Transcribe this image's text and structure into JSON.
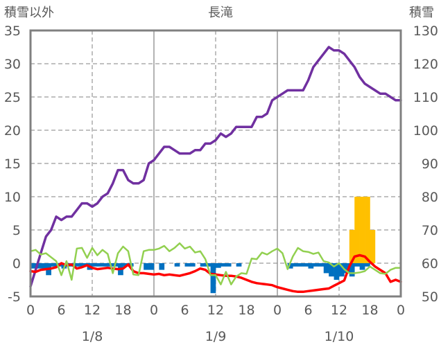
{
  "chart_data": {
    "type": "line",
    "title": "長滝",
    "ylabel_left": "積雪以外",
    "ylabel_right": "積雪",
    "ylim_left": [
      -5,
      35
    ],
    "ylim_right": [
      50,
      130
    ],
    "left_ticks": [
      "35",
      "30",
      "25",
      "20",
      "15",
      "10",
      "5",
      "0",
      "-5"
    ],
    "right_ticks": [
      "130",
      "120",
      "110",
      "100",
      "90",
      "80",
      "70",
      "60",
      "50"
    ],
    "x_ticks": [
      "0",
      "6",
      "12",
      "18",
      "0",
      "6",
      "12",
      "18",
      "0",
      "6",
      "12",
      "18",
      "0"
    ],
    "date_labels": [
      "1/8",
      "1/9",
      "1/10"
    ],
    "colors": {
      "snow_depth": "#7030a0",
      "snowfall": "#ffc000",
      "temperature": "#ff0000",
      "wind": "#92d050",
      "precip": "#0070c0",
      "frame": "#808080"
    },
    "series": [
      {
        "key": "snow_depth",
        "axis": "right",
        "x": [
          0,
          1,
          2,
          3,
          4,
          5,
          6,
          7,
          8,
          9,
          10,
          11,
          12,
          13,
          14,
          15,
          16,
          17,
          18,
          19,
          20,
          21,
          22,
          23,
          24,
          25,
          26,
          27,
          28,
          29,
          30,
          31,
          32,
          33,
          34,
          35,
          36,
          37,
          38,
          39,
          40,
          41,
          42,
          43,
          44,
          45,
          46,
          47,
          48,
          49,
          50,
          51,
          52,
          53,
          54,
          55,
          56,
          57,
          58,
          59,
          60,
          61,
          62,
          63,
          64,
          65,
          66,
          67,
          68,
          69,
          70,
          71,
          72
        ],
        "values": [
          53,
          58,
          63,
          68,
          70,
          74,
          73,
          74,
          74,
          76,
          78,
          78,
          77,
          78,
          80,
          81,
          84,
          88,
          88,
          85,
          84,
          84,
          85,
          90,
          91,
          93,
          95,
          95,
          94,
          93,
          93,
          93,
          94,
          94,
          96,
          96,
          97,
          99,
          98,
          99,
          101,
          101,
          101,
          101,
          104,
          104,
          105,
          109,
          110,
          111,
          112,
          112,
          112,
          112,
          115,
          119,
          121,
          123,
          125,
          124,
          124,
          123,
          121,
          119,
          116,
          114,
          113,
          112,
          111,
          111,
          110,
          109,
          109
        ]
      },
      {
        "key": "temperature",
        "axis": "left",
        "x": [
          0,
          1,
          2,
          3,
          4,
          5,
          6,
          7,
          8,
          9,
          10,
          11,
          12,
          13,
          14,
          15,
          16,
          17,
          18,
          19,
          20,
          21,
          22,
          23,
          24,
          25,
          26,
          27,
          28,
          29,
          30,
          31,
          32,
          33,
          34,
          35,
          36,
          37,
          38,
          39,
          40,
          41,
          42,
          43,
          44,
          45,
          46,
          47,
          48,
          49,
          50,
          51,
          52,
          53,
          54,
          55,
          56,
          57,
          58,
          59,
          60,
          61,
          62,
          63,
          64,
          65,
          66,
          67,
          68,
          69,
          70,
          71,
          72
        ],
        "values": [
          -1.2,
          -1.3,
          -1.0,
          -0.9,
          -0.8,
          -0.6,
          0.0,
          -0.3,
          -0.2,
          -0.8,
          -0.6,
          -0.3,
          -0.7,
          -0.9,
          -0.8,
          -0.7,
          -0.8,
          -0.9,
          -0.8,
          -0.2,
          -1.2,
          -1.5,
          -1.5,
          -1.6,
          -1.7,
          -1.6,
          -1.8,
          -1.7,
          -1.8,
          -1.9,
          -1.7,
          -1.5,
          -1.2,
          -0.8,
          -1.0,
          -1.6,
          -1.7,
          -1.8,
          -1.9,
          -1.9,
          -2.0,
          -2.2,
          -2.5,
          -2.8,
          -3.0,
          -3.1,
          -3.2,
          -3.3,
          -3.6,
          -3.8,
          -4.0,
          -4.2,
          -4.3,
          -4.3,
          -4.2,
          -4.1,
          -4.0,
          -3.9,
          -3.8,
          -3.4,
          -3.0,
          -2.6,
          -0.5,
          1.0,
          1.2,
          1.0,
          0.2,
          -0.5,
          -1.0,
          -1.5,
          -2.8,
          -2.5,
          -2.8
        ]
      },
      {
        "key": "wind",
        "axis": "left",
        "x": [
          0,
          1,
          2,
          3,
          4,
          5,
          6,
          7,
          8,
          9,
          10,
          11,
          12,
          13,
          14,
          15,
          16,
          17,
          18,
          19,
          20,
          21,
          22,
          23,
          24,
          25,
          26,
          27,
          28,
          29,
          30,
          31,
          32,
          33,
          34,
          35,
          36,
          37,
          38,
          39,
          40,
          41,
          42,
          43,
          44,
          45,
          46,
          47,
          48,
          49,
          50,
          51,
          52,
          53,
          54,
          55,
          56,
          57,
          58,
          59,
          60,
          61,
          62,
          63,
          64,
          65,
          66,
          67,
          68,
          69,
          70,
          71,
          72
        ],
        "values": [
          1.8,
          2.0,
          1.3,
          1.5,
          0.9,
          0.3,
          -1.8,
          0.3,
          -2.5,
          2.2,
          2.3,
          0.8,
          2.3,
          1.2,
          2.0,
          1.4,
          -1.5,
          1.5,
          2.5,
          1.8,
          -1.7,
          -1.8,
          1.8,
          2.0,
          2.0,
          2.2,
          2.6,
          1.8,
          2.3,
          3.0,
          2.2,
          2.5,
          1.6,
          1.8,
          0.6,
          -1.8,
          -1.8,
          -3.2,
          -1.3,
          -3.2,
          -2.0,
          -1.5,
          -1.6,
          0.7,
          0.6,
          1.6,
          1.3,
          1.8,
          2.2,
          1.5,
          -0.9,
          1.0,
          2.3,
          1.8,
          1.7,
          1.4,
          1.6,
          0.3,
          0.1,
          -0.5,
          0.0,
          -0.9,
          -1.5,
          -1.5,
          -1.4,
          -1.2,
          -0.5,
          -1.0,
          -1.5,
          -1.6,
          -1.0,
          -0.7,
          -0.7
        ]
      }
    ],
    "bars": [
      {
        "key": "precip",
        "axis": "left",
        "x": [
          0,
          1,
          2,
          3,
          4,
          5,
          6,
          7,
          8,
          9,
          10,
          11,
          12,
          13,
          14,
          15,
          16,
          17,
          18,
          19,
          20,
          21,
          22,
          23,
          24,
          25,
          26,
          27,
          28,
          29,
          30,
          31,
          32,
          33,
          34,
          35,
          36,
          37,
          38,
          39,
          40,
          41,
          42,
          43,
          44,
          45,
          46,
          47,
          48,
          49,
          50,
          51,
          52,
          53,
          54,
          55,
          56,
          57,
          58,
          59,
          60,
          61,
          62,
          63,
          64,
          65,
          66,
          67,
          68,
          69,
          70,
          71
        ],
        "values": [
          -0.8,
          -0.8,
          -0.8,
          -1.8,
          -0.5,
          -0.5,
          -0.8,
          -0.5,
          -0.5,
          -0.5,
          -0.5,
          -1.0,
          -0.5,
          -0.5,
          -0.5,
          -0.5,
          -0.5,
          -1.8,
          -0.5,
          -0.5,
          0,
          0,
          -1.0,
          -1.0,
          0,
          -1.0,
          0,
          0,
          -0.5,
          0,
          -0.5,
          -0.5,
          0,
          -0.5,
          -0.5,
          -4.5,
          -0.7,
          -0.5,
          -0.5,
          0,
          -0.5,
          0,
          0,
          0,
          0,
          0,
          0,
          0,
          0,
          0,
          -0.8,
          -0.5,
          -0.5,
          -0.5,
          -0.8,
          -0.5,
          -0.5,
          -1.5,
          -2.0,
          -2.5,
          -2.0,
          -1.5,
          -2.0,
          -0.5,
          -1.0,
          -0.5,
          0,
          0,
          0,
          0,
          0,
          0
        ]
      },
      {
        "key": "snowfall",
        "axis": "left",
        "x": [
          62,
          63,
          64,
          65,
          66
        ],
        "values": [
          5,
          10,
          10,
          10,
          5
        ]
      }
    ]
  }
}
